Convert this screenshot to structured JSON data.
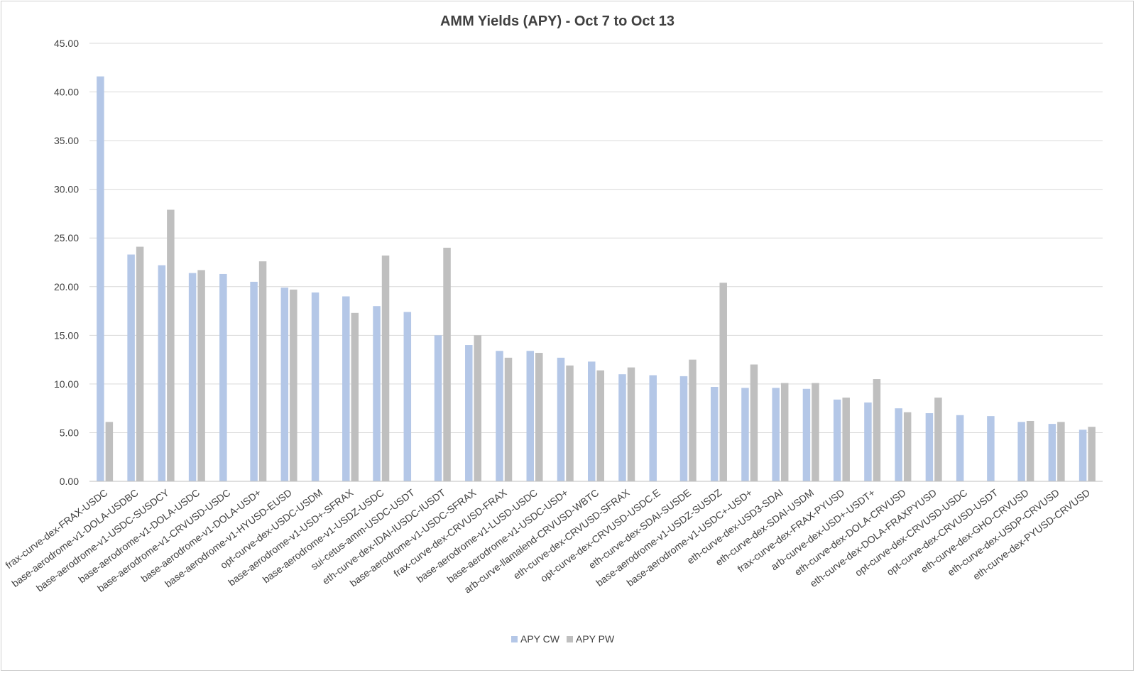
{
  "chart_data": {
    "type": "bar",
    "title": "AMM Yields (APY) - Oct 7 to Oct 13",
    "xlabel": "",
    "ylabel": "",
    "ylim": [
      0,
      45
    ],
    "yticks": [
      "0.00",
      "5.00",
      "10.00",
      "15.00",
      "20.00",
      "25.00",
      "30.00",
      "35.00",
      "40.00",
      "45.00"
    ],
    "grid": true,
    "legend_position": "bottom",
    "categories": [
      "frax-curve-dex-FRAX-USDC",
      "base-aerodrome-v1-DOLA-USDBC",
      "base-aerodrome-v1-USDC-SUSDCY",
      "base-aerodrome-v1-DOLA-USDC",
      "base-aerodrome-v1-CRVUSD-USDC",
      "base-aerodrome-v1-DOLA-USD+",
      "base-aerodrome-v1-HYUSD-EUSD",
      "opt-curve-dex-USDC-USDM",
      "base-aerodrome-v1-USD+-SFRAX",
      "base-aerodrome-v1-USDZ-USDC",
      "sui-cetus-amm-USDC-USDT",
      "eth-curve-dex-IDAI-IUSDC-IUSDT",
      "base-aerodrome-v1-USDC-SFRAX",
      "frax-curve-dex-CRVUSD-FRAX",
      "base-aerodrome-v1-LUSD-USDC",
      "base-aerodrome-v1-USDC-USD+",
      "arb-curve-llamalend-CRVUSD-WBTC",
      "eth-curve-dex-CRVUSD-SFRAX",
      "opt-curve-dex-CRVUSD-USDC.E",
      "eth-curve-dex-SDAI-SUSDE",
      "base-aerodrome-v1-USDZ-SUSDZ",
      "base-aerodrome-v1-USDC+-USD+",
      "eth-curve-dex-USD3-SDAI",
      "eth-curve-dex-SDAI-USDM",
      "frax-curve-dex-FRAX-PYUSD",
      "arb-curve-dex-USD+-USDT+",
      "eth-curve-dex-DOLA-CRVUSD",
      "eth-curve-dex-DOLA-FRAXPYUSD",
      "opt-curve-dex-CRVUSD-USDC",
      "opt-curve-dex-CRVUSD-USDT",
      "eth-curve-dex-GHO-CRVUSD",
      "eth-curve-dex-USDP-CRVUSD",
      "eth-curve-dex-PYUSD-CRVUSD"
    ],
    "series": [
      {
        "name": "APY CW",
        "color": "#b4c7e7",
        "values": [
          41.6,
          23.3,
          22.2,
          21.4,
          21.3,
          20.5,
          19.9,
          19.4,
          19.0,
          18.0,
          17.4,
          15.0,
          14.0,
          13.4,
          13.4,
          12.7,
          12.3,
          11.0,
          10.9,
          10.8,
          9.7,
          9.6,
          9.6,
          9.5,
          8.4,
          8.1,
          7.5,
          7.0,
          6.8,
          6.7,
          6.1,
          5.9,
          5.3
        ]
      },
      {
        "name": "APY PW",
        "color": "#bfbfbf",
        "values": [
          6.1,
          24.1,
          27.9,
          21.7,
          null,
          22.6,
          19.7,
          null,
          17.3,
          23.2,
          null,
          24.0,
          15.0,
          12.7,
          13.2,
          11.9,
          11.4,
          11.7,
          null,
          12.5,
          20.4,
          12.0,
          10.1,
          10.1,
          8.6,
          10.5,
          7.1,
          8.6,
          null,
          null,
          6.2,
          6.1,
          5.6
        ]
      }
    ]
  }
}
